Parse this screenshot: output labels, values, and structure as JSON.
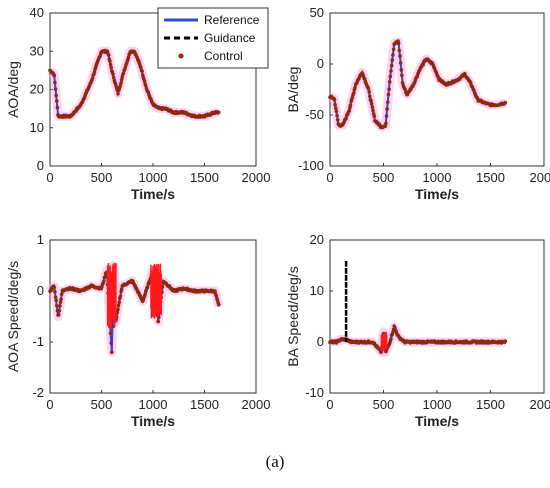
{
  "figure": {
    "caption": "(a)",
    "colors": {
      "reference": "#2b4cc4",
      "guidance": "#000000",
      "control": "#8b2a12",
      "highlight": "#ff1a1a"
    }
  },
  "legend": {
    "placement": "top-right of first subplot",
    "entries": [
      {
        "label": "Reference",
        "style": "solid-line",
        "color": "#2b4cc4"
      },
      {
        "label": "Guidance",
        "style": "dashed-line",
        "color": "#000000"
      },
      {
        "label": "Control",
        "style": "dot",
        "color": "#8b2a12"
      }
    ]
  },
  "chart_data": [
    {
      "type": "line",
      "title": "",
      "xlabel": "Time/s",
      "ylabel": "AOA/deg",
      "xlim": [
        0,
        2000
      ],
      "ylim": [
        0,
        40
      ],
      "xticks": [
        "0",
        "500",
        "1000",
        "1500",
        "2000"
      ],
      "yticks": [
        "0",
        "10",
        "20",
        "30",
        "40"
      ],
      "series": [
        {
          "name": "Reference",
          "x": [
            0,
            40,
            80,
            120,
            200,
            300,
            400,
            460,
            500,
            560,
            600,
            660,
            720,
            780,
            820,
            880,
            940,
            1000,
            1060,
            1120,
            1200,
            1300,
            1400,
            1500,
            1600,
            1640
          ],
          "y": [
            25,
            24,
            13,
            13,
            13,
            16,
            22,
            27,
            30,
            30,
            25,
            19,
            25,
            30,
            30,
            26,
            20,
            16,
            15,
            15,
            14,
            14,
            13,
            13,
            14,
            14
          ]
        }
      ]
    },
    {
      "type": "line",
      "title": "",
      "xlabel": "Time/s",
      "ylabel": "BA/deg",
      "xlim": [
        0,
        2000
      ],
      "ylim": [
        -100,
        50
      ],
      "xticks": [
        "0",
        "500",
        "1000",
        "1500",
        "2000"
      ],
      "yticks": [
        "-100",
        "-50",
        "0",
        "50"
      ],
      "series": [
        {
          "name": "Reference",
          "x": [
            0,
            40,
            80,
            120,
            180,
            240,
            300,
            360,
            420,
            480,
            520,
            560,
            600,
            640,
            680,
            720,
            780,
            840,
            900,
            960,
            1020,
            1080,
            1140,
            1200,
            1260,
            1320,
            1380,
            1440,
            1500,
            1560,
            1640
          ],
          "y": [
            -32,
            -34,
            -60,
            -60,
            -45,
            -20,
            -8,
            -25,
            -55,
            -62,
            -60,
            -15,
            20,
            22,
            -20,
            -30,
            -20,
            -5,
            5,
            0,
            -15,
            -20,
            -18,
            -15,
            -10,
            -20,
            -35,
            -38,
            -40,
            -40,
            -38
          ]
        }
      ]
    },
    {
      "type": "line",
      "title": "",
      "xlabel": "Time/s",
      "ylabel": "AOA Speed/deg/s",
      "xlim": [
        0,
        2000
      ],
      "ylim": [
        -2,
        1
      ],
      "xticks": [
        "0",
        "500",
        "1000",
        "1500",
        "2000"
      ],
      "yticks": [
        "-2",
        "-1",
        "0",
        "1"
      ],
      "series": [
        {
          "name": "Reference",
          "x": [
            0,
            40,
            80,
            120,
            200,
            300,
            400,
            500,
            550,
            600,
            620,
            640,
            700,
            800,
            900,
            1000,
            1050,
            1100,
            1200,
            1300,
            1400,
            1500,
            1600,
            1640
          ],
          "y": [
            0,
            0.1,
            -0.5,
            0,
            0.05,
            0,
            0.1,
            0.05,
            0.4,
            -1.2,
            0.5,
            -0.6,
            0.1,
            0.2,
            -0.2,
            0.4,
            -0.6,
            0.2,
            0,
            0.05,
            0,
            0,
            0,
            -0.3
          ]
        }
      ]
    },
    {
      "type": "line",
      "title": "",
      "xlabel": "Time/s",
      "ylabel": "BA Speed/deg/s",
      "xlim": [
        0,
        2000
      ],
      "ylim": [
        -10,
        20
      ],
      "xticks": [
        "0",
        "500",
        "1000",
        "1500",
        "2000"
      ],
      "yticks": [
        "-10",
        "0",
        "10",
        "20"
      ],
      "series": [
        {
          "name": "Reference",
          "x": [
            0,
            60,
            100,
            150,
            200,
            300,
            400,
            480,
            500,
            520,
            560,
            600,
            640,
            700,
            800,
            900,
            1000,
            1100,
            1200,
            1300,
            1400,
            1500,
            1600,
            1640
          ],
          "y": [
            0,
            0,
            0.5,
            0.5,
            0,
            0,
            0,
            -2,
            2,
            -2,
            0,
            3,
            1,
            0,
            0,
            0,
            0,
            0,
            0,
            0,
            0,
            0,
            0,
            0
          ]
        },
        {
          "name": "Guidance",
          "x": [
            150,
            150,
            150
          ],
          "y": [
            0,
            16,
            0
          ]
        }
      ]
    }
  ]
}
